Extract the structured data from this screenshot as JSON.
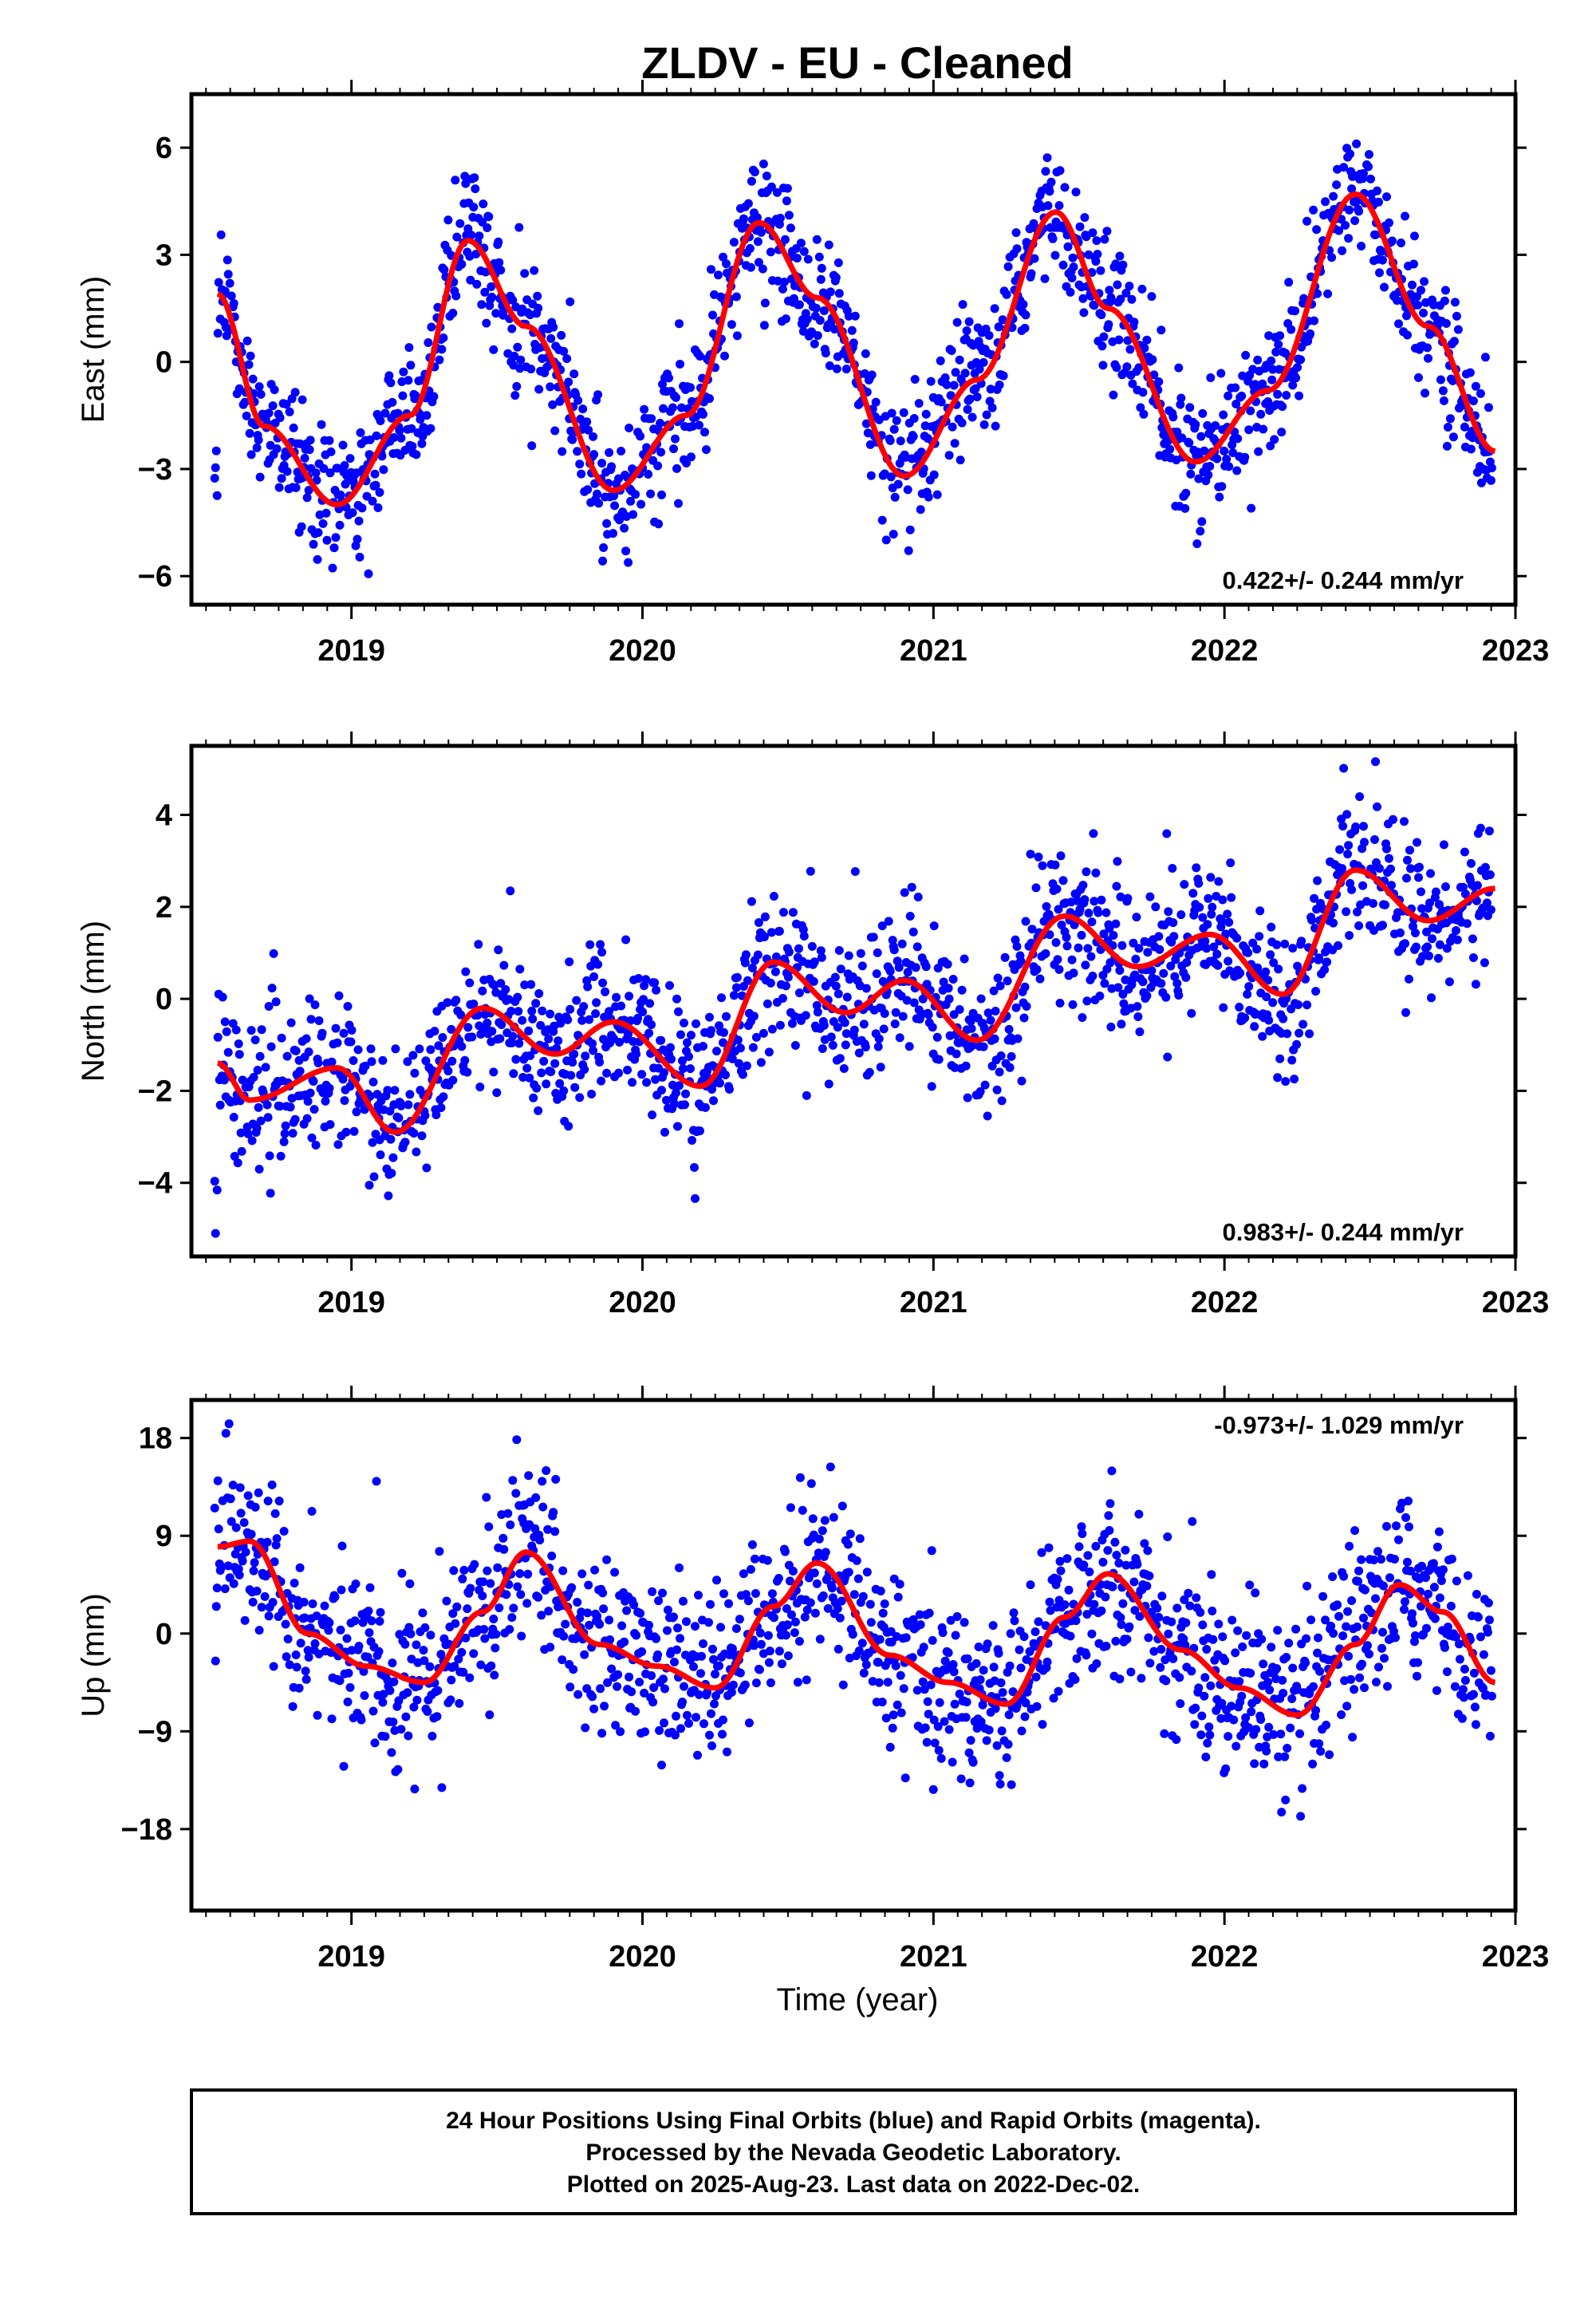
{
  "chart_data": {
    "title": "ZLDV  - EU - Cleaned",
    "xlabel": "Time (year)",
    "x_ticks": [
      "2019",
      "2020",
      "2021",
      "2022",
      "2023"
    ],
    "xlim": [
      2018.45,
      2023.0
    ],
    "panels": [
      {
        "type": "scatter",
        "ylabel": "East (mm)",
        "ylim": [
          -6.8,
          7.5
        ],
        "y_ticks": [
          "6",
          "3",
          "0",
          "−3",
          "−6"
        ],
        "rate_text": "0.422+/- 0.244 mm/yr",
        "model": {
          "offset": 0.1,
          "trend": 0.422,
          "annual_amp": 3.6,
          "annual_phase": 0.19,
          "semi_amp": 0.6,
          "semi_phase": 0.1
        },
        "scatter": 0.9,
        "fit_curve": {
          "x": [
            2018.54,
            2018.7,
            2018.95,
            2019.2,
            2019.4,
            2019.6,
            2019.9,
            2020.15,
            2020.4,
            2020.6,
            2020.9,
            2021.15,
            2021.42,
            2021.6,
            2021.9,
            2022.15,
            2022.45,
            2022.7,
            2022.93
          ],
          "y": [
            1.9,
            -1.8,
            -4.0,
            -1.5,
            3.4,
            1.0,
            -3.6,
            -1.5,
            3.9,
            1.8,
            -3.2,
            -0.5,
            4.2,
            1.5,
            -2.8,
            -0.8,
            4.7,
            1.0,
            -2.5
          ]
        }
      },
      {
        "type": "scatter",
        "ylabel": "North (mm)",
        "ylim": [
          -5.6,
          5.5
        ],
        "y_ticks": [
          "4",
          "2",
          "0",
          "−2",
          "−4"
        ],
        "rate_text": "0.983+/- 0.244 mm/yr",
        "model": {
          "offset": -2.1,
          "trend": 0.983,
          "annual_amp": 0.5,
          "annual_phase": 0.9,
          "semi_amp": 0.4,
          "semi_phase": 0.3
        },
        "scatter": 0.8,
        "fit_curve": {
          "x": [
            2018.54,
            2018.65,
            2018.95,
            2019.15,
            2019.45,
            2019.7,
            2019.9,
            2020.2,
            2020.45,
            2020.7,
            2020.9,
            2021.15,
            2021.45,
            2021.7,
            2021.95,
            2022.2,
            2022.45,
            2022.7,
            2022.93
          ],
          "y": [
            -1.4,
            -2.2,
            -1.5,
            -2.9,
            -0.2,
            -1.2,
            -0.5,
            -1.9,
            0.8,
            -0.3,
            0.4,
            -0.9,
            1.8,
            0.7,
            1.4,
            0.1,
            2.8,
            1.7,
            2.4
          ]
        }
      },
      {
        "type": "scatter",
        "ylabel": "Up (mm)",
        "ylim": [
          -25.5,
          21.5
        ],
        "y_ticks": [
          "18",
          "9",
          "0",
          "−9",
          "−18"
        ],
        "rate_text": "-0.973+/- 1.029 mm/yr",
        "model": {
          "offset": 0.0,
          "trend": -0.973,
          "annual_amp": 6.0,
          "annual_phase": 0.35,
          "semi_amp": 1.5,
          "semi_phase": 0.1
        },
        "scatter": 4.0,
        "fit_curve": {
          "x": [
            2018.54,
            2018.65,
            2018.85,
            2019.05,
            2019.25,
            2019.45,
            2019.6,
            2019.85,
            2020.05,
            2020.25,
            2020.45,
            2020.6,
            2020.85,
            2021.05,
            2021.25,
            2021.45,
            2021.6,
            2021.85,
            2022.05,
            2022.25,
            2022.45,
            2022.6,
            2022.75,
            2022.93
          ],
          "y": [
            8.0,
            8.5,
            0.0,
            -3.0,
            -4.5,
            2.0,
            7.5,
            -1.0,
            -3.0,
            -5.0,
            2.5,
            6.5,
            -2.0,
            -4.5,
            -6.5,
            1.5,
            5.5,
            -1.5,
            -5.0,
            -7.5,
            -1.0,
            4.5,
            2.0,
            -4.5
          ]
        }
      }
    ],
    "point_color": "#0000ff",
    "line_color": "#ff0000"
  },
  "footer": {
    "line1": "24 Hour Positions Using Final Orbits (blue) and Rapid Orbits (magenta).",
    "line2": "Processed by the Nevada Geodetic Laboratory.",
    "line3": "Plotted on 2025-Aug-23. Last data on 2022-Dec-02."
  }
}
